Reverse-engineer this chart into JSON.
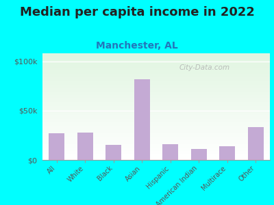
{
  "title": "Median per capita income in 2022",
  "subtitle": "Manchester, AL",
  "categories": [
    "All",
    "White",
    "Black",
    "Asian",
    "Hispanic",
    "American Indian",
    "Multirace",
    "Other"
  ],
  "values": [
    27000,
    27500,
    15000,
    82000,
    16000,
    11000,
    14000,
    33000
  ],
  "bar_color": "#c4aad4",
  "background_color": "#00ffff",
  "title_fontsize": 13,
  "subtitle_fontsize": 10,
  "ylabel_ticks": [
    "$0",
    "$50k",
    "$100k"
  ],
  "ytick_values": [
    0,
    50000,
    100000
  ],
  "ylim": [
    0,
    108000
  ],
  "watermark": "City-Data.com",
  "title_color": "#222222",
  "subtitle_color": "#2277bb",
  "tick_label_color": "#555555"
}
